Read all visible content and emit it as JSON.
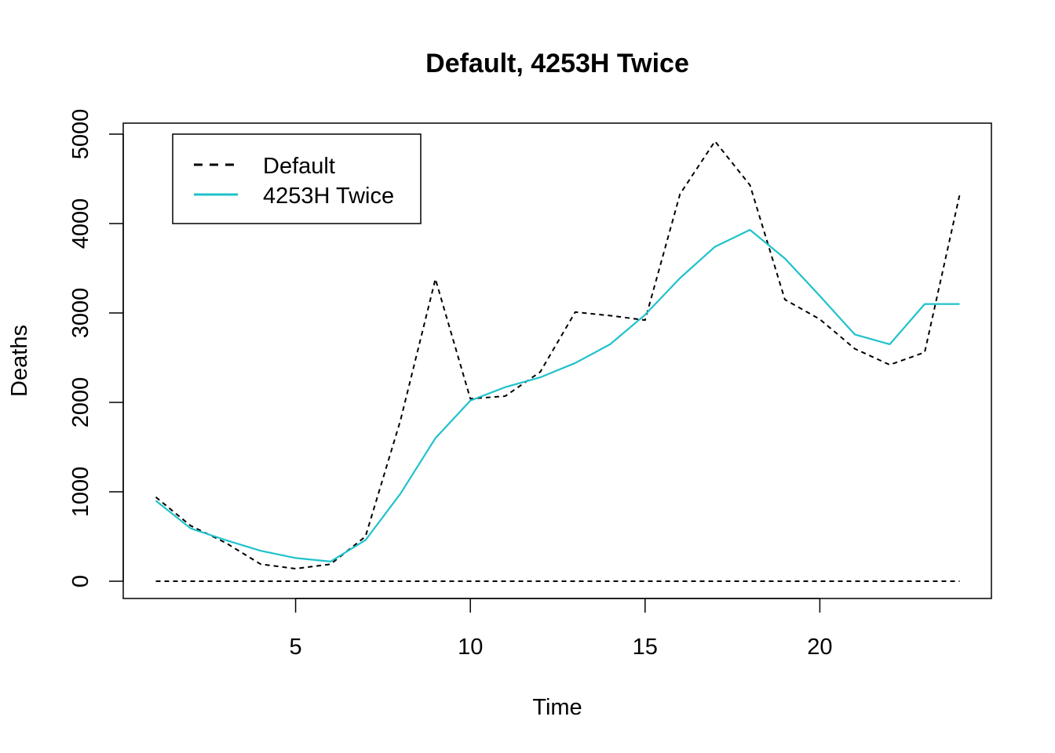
{
  "chart_data": {
    "type": "line",
    "title": "Default, 4253H Twice",
    "xlabel": "Time",
    "ylabel": "Deaths",
    "xlim": [
      1,
      24
    ],
    "ylim": [
      0,
      5000
    ],
    "x_ticks": [
      5,
      10,
      15,
      20
    ],
    "y_ticks": [
      0,
      1000,
      2000,
      3000,
      4000,
      5000
    ],
    "grid": false,
    "legend": {
      "position": "top-left",
      "entries": [
        "Default",
        "4253H Twice"
      ]
    },
    "x": [
      1,
      2,
      3,
      4,
      5,
      6,
      7,
      8,
      9,
      10,
      11,
      12,
      13,
      14,
      15,
      16,
      17,
      18,
      19,
      20,
      21,
      22,
      23,
      24
    ],
    "series": [
      {
        "name": "Default",
        "color": "#000000",
        "style": "dashed",
        "values": [
          940,
          620,
          430,
          190,
          140,
          190,
          500,
          1800,
          3380,
          2040,
          2070,
          2340,
          3010,
          2970,
          2920,
          4330,
          4920,
          4430,
          3150,
          2930,
          2600,
          2420,
          2560,
          4320
        ]
      },
      {
        "name": "4253H Twice",
        "color": "#1fc2cc",
        "style": "solid",
        "values": [
          900,
          590,
          460,
          340,
          260,
          220,
          460,
          980,
          1600,
          2020,
          2170,
          2280,
          2440,
          2650,
          2980,
          3390,
          3740,
          3930,
          3610,
          3190,
          2760,
          2650,
          3100,
          3100
        ]
      },
      {
        "name": "",
        "color": "#000000",
        "style": "dashed",
        "values": [
          0,
          0,
          0,
          0,
          0,
          0,
          0,
          0,
          0,
          0,
          0,
          0,
          0,
          0,
          0,
          0,
          0,
          0,
          0,
          0,
          0,
          0,
          0,
          0
        ]
      }
    ]
  }
}
